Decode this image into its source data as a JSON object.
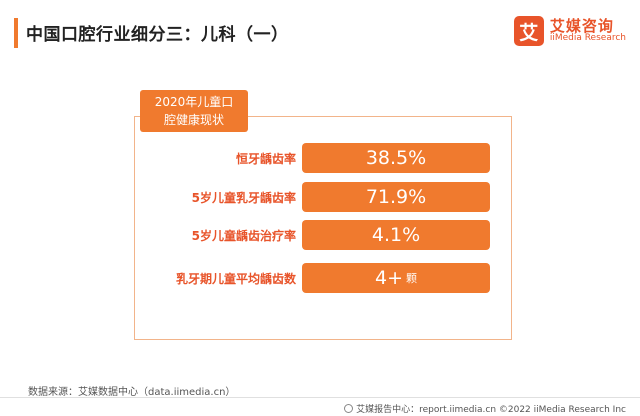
{
  "header": {
    "title": "中国口腔行业细分三：儿科（一）"
  },
  "logo": {
    "mark": "艾",
    "name_cn": "艾媒咨询",
    "name_en": "iiMedia Research"
  },
  "panel": {
    "tag_line1": "2020年儿童口",
    "tag_line2": "腔健康现状",
    "rows": [
      {
        "label": "恒牙龋齿率",
        "value": "38.5%",
        "unit": ""
      },
      {
        "label": "5岁儿童乳牙龋齿率",
        "value": "71.9%",
        "unit": ""
      },
      {
        "label": "5岁儿童龋齿治疗率",
        "value": "4.1%",
        "unit": ""
      },
      {
        "label": "乳牙期儿童平均龋齿数",
        "value": "4+",
        "unit": "颗"
      }
    ]
  },
  "source": "数据来源：艾媒数据中心（data.iimedia.cn）",
  "footer": "艾媒报告中心：report.iimedia.cn  ©2022  iiMedia Research  Inc",
  "colors": {
    "accent": "#f07a2e",
    "brand": "#e8542a"
  }
}
